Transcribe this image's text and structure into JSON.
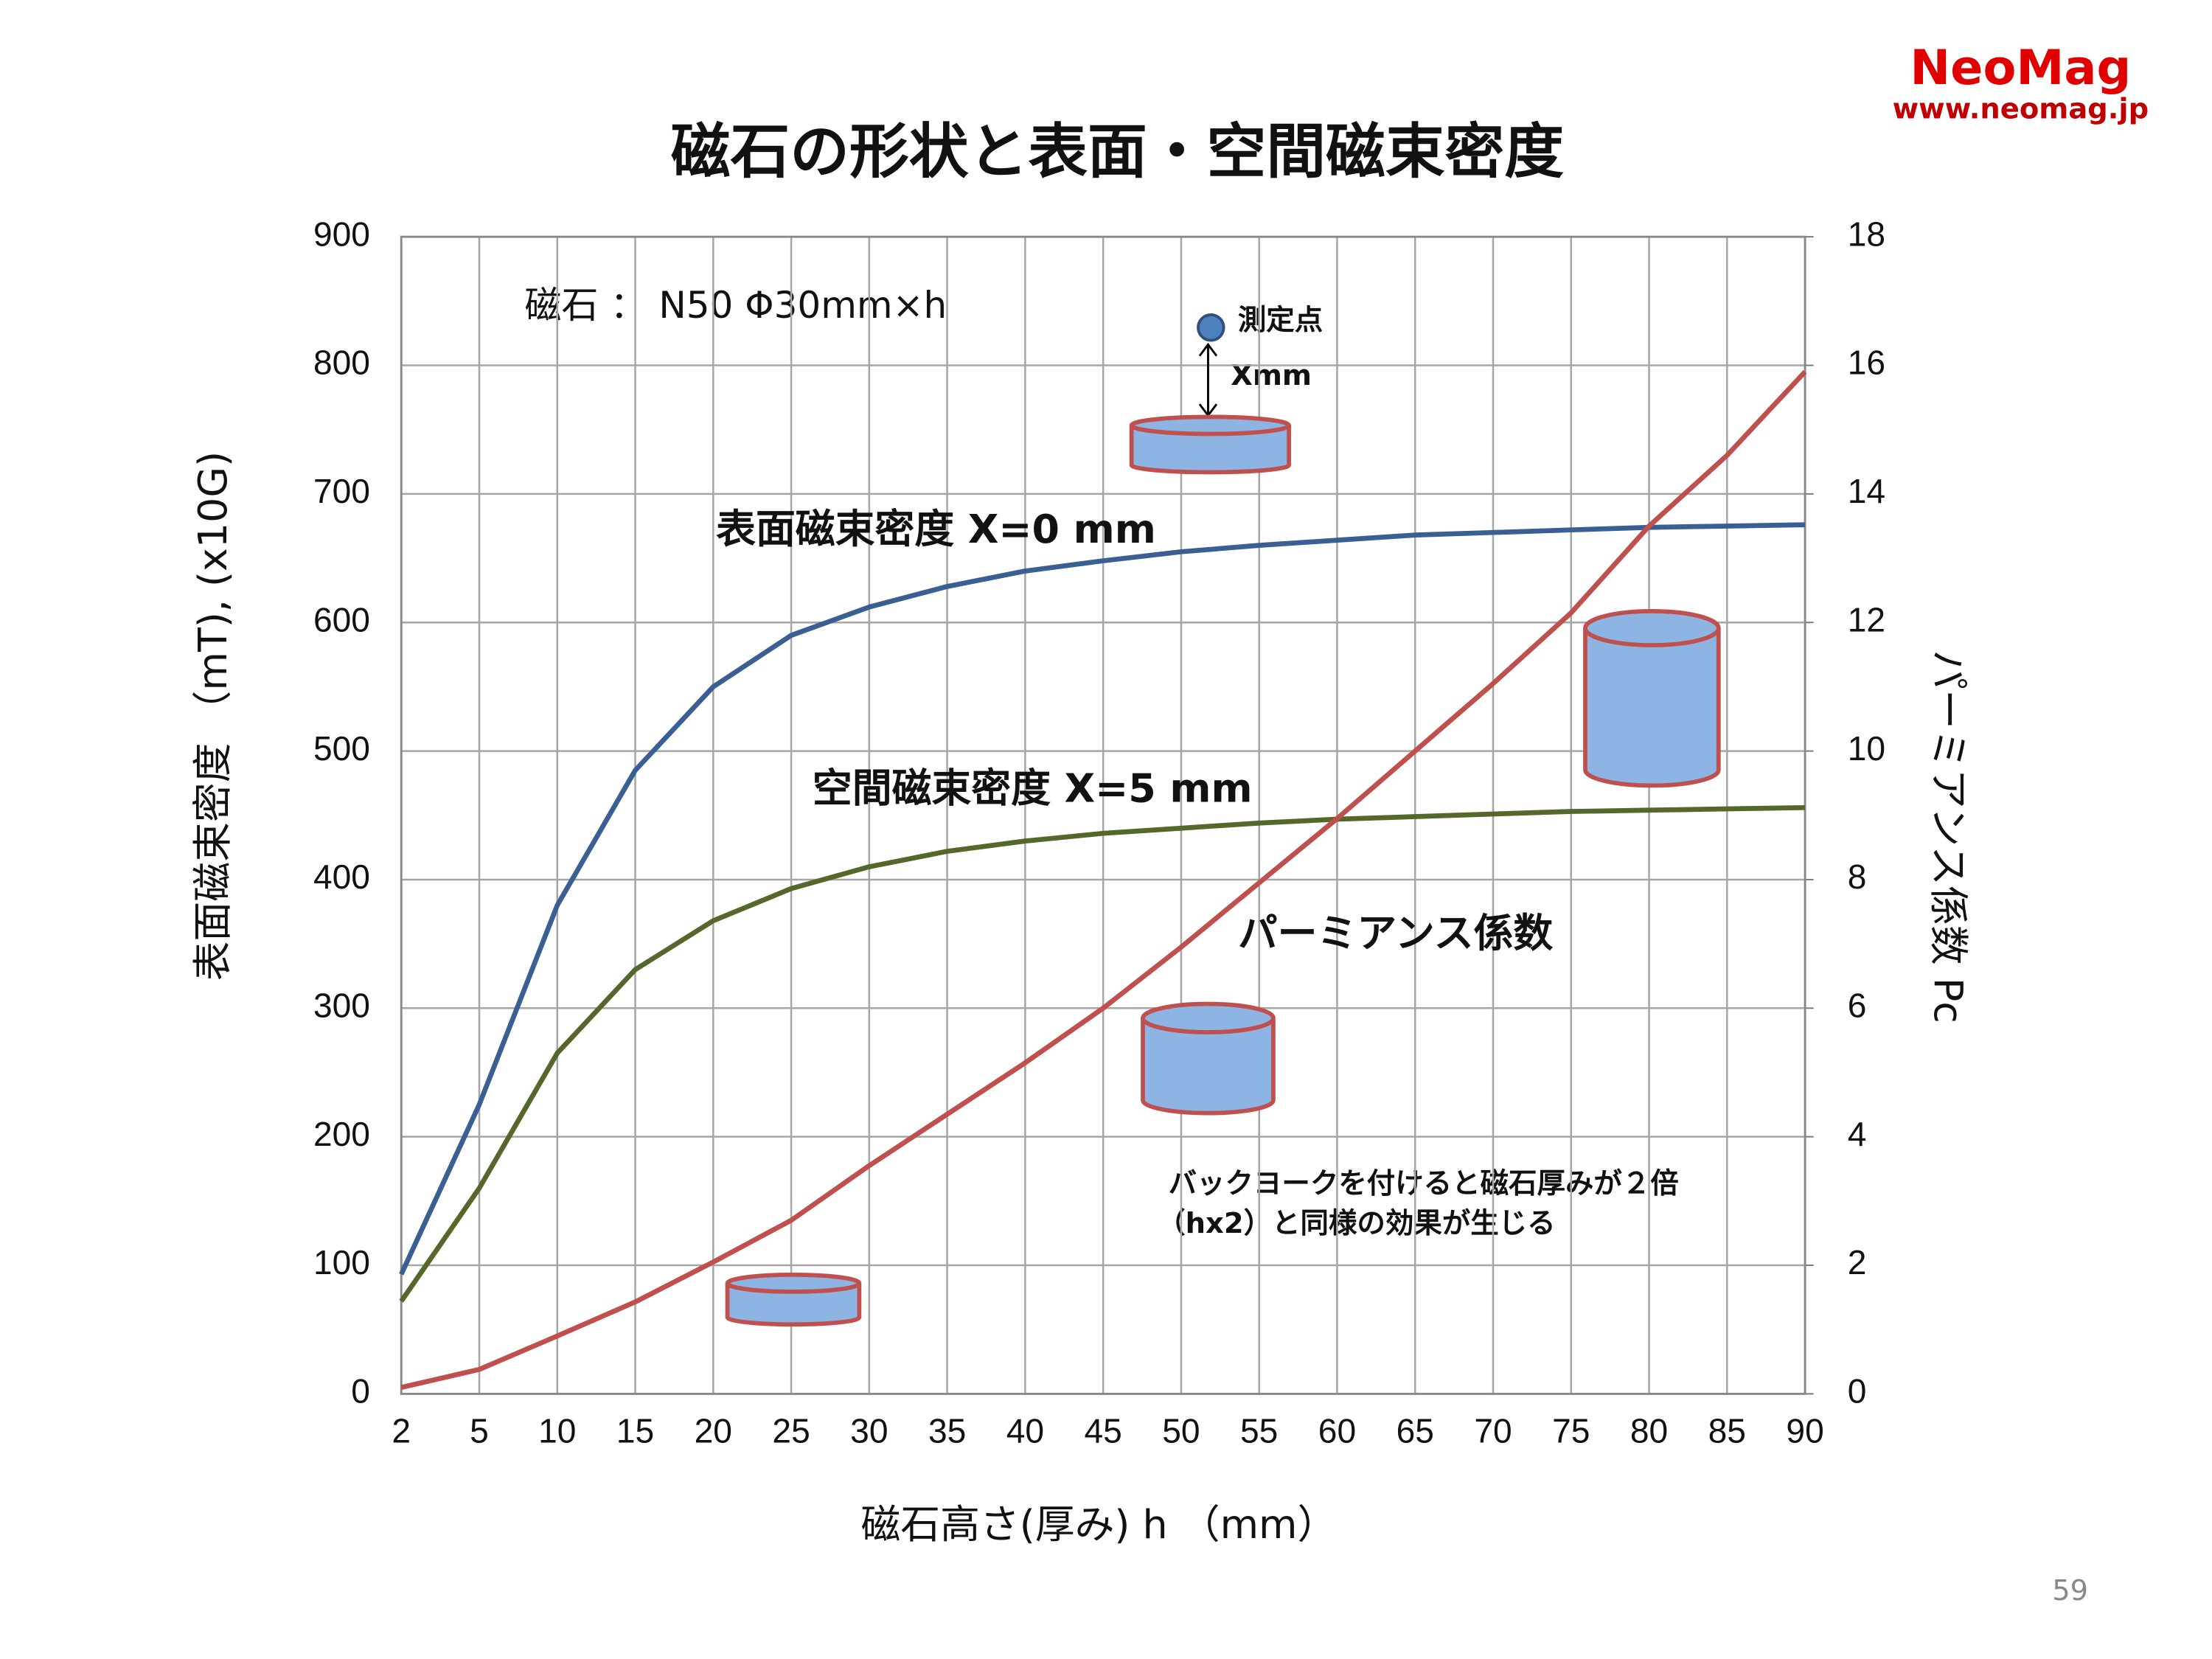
{
  "chart_data": {
    "type": "line",
    "title": "磁石の形状と表面・空間磁束密度",
    "brand": "NeoMag",
    "url": "www.neomag.jp",
    "page_number": "59",
    "magnet_label": "磁石 ： N50 Φ30mm×h",
    "measure_point_label": "測定点",
    "distance_label": "Xmm",
    "note": [
      "バックヨークを付けると磁石厚みが２倍",
      "（hx2）と同様の効果が生じる"
    ],
    "x_label": "磁石高さ(厚み) h （mm）",
    "y_label": "表面磁束密度 （mT), (x10G)",
    "y2_label": "パーミアンス係数 Pc",
    "categories": [
      2,
      5,
      10,
      15,
      20,
      25,
      30,
      35,
      40,
      45,
      50,
      55,
      60,
      65,
      70,
      75,
      80,
      85,
      90
    ],
    "ylim": [
      0,
      900
    ],
    "yticks": [
      0,
      100,
      200,
      300,
      400,
      500,
      600,
      700,
      800,
      900
    ],
    "y2lim": [
      0,
      18
    ],
    "y2ticks": [
      0,
      2,
      4,
      6,
      8,
      10,
      12,
      14,
      16,
      18
    ],
    "grid": true,
    "series": [
      {
        "name": "表面磁束密度 X=0 mm",
        "color": "#3a5f92",
        "values": [
          93,
          225,
          380,
          485,
          550,
          590,
          612,
          628,
          640,
          648,
          655,
          660,
          664,
          668,
          670,
          672,
          674,
          675,
          676
        ]
      },
      {
        "name": "空間磁束密度 X=5 mm",
        "color": "#55672a",
        "values": [
          72,
          160,
          265,
          330,
          368,
          393,
          410,
          422,
          430,
          436,
          440,
          444,
          447,
          449,
          451,
          453,
          454,
          455,
          456
        ]
      },
      {
        "name": "パーミアンス係数",
        "color": "#c0504d",
        "axis": "y2",
        "values": [
          0.1,
          0.38,
          0.9,
          1.43,
          2.05,
          2.7,
          3.55,
          4.35,
          5.15,
          6.0,
          6.95,
          7.95,
          8.95,
          10.0,
          11.05,
          12.15,
          13.5,
          14.6,
          15.9
        ]
      }
    ]
  }
}
